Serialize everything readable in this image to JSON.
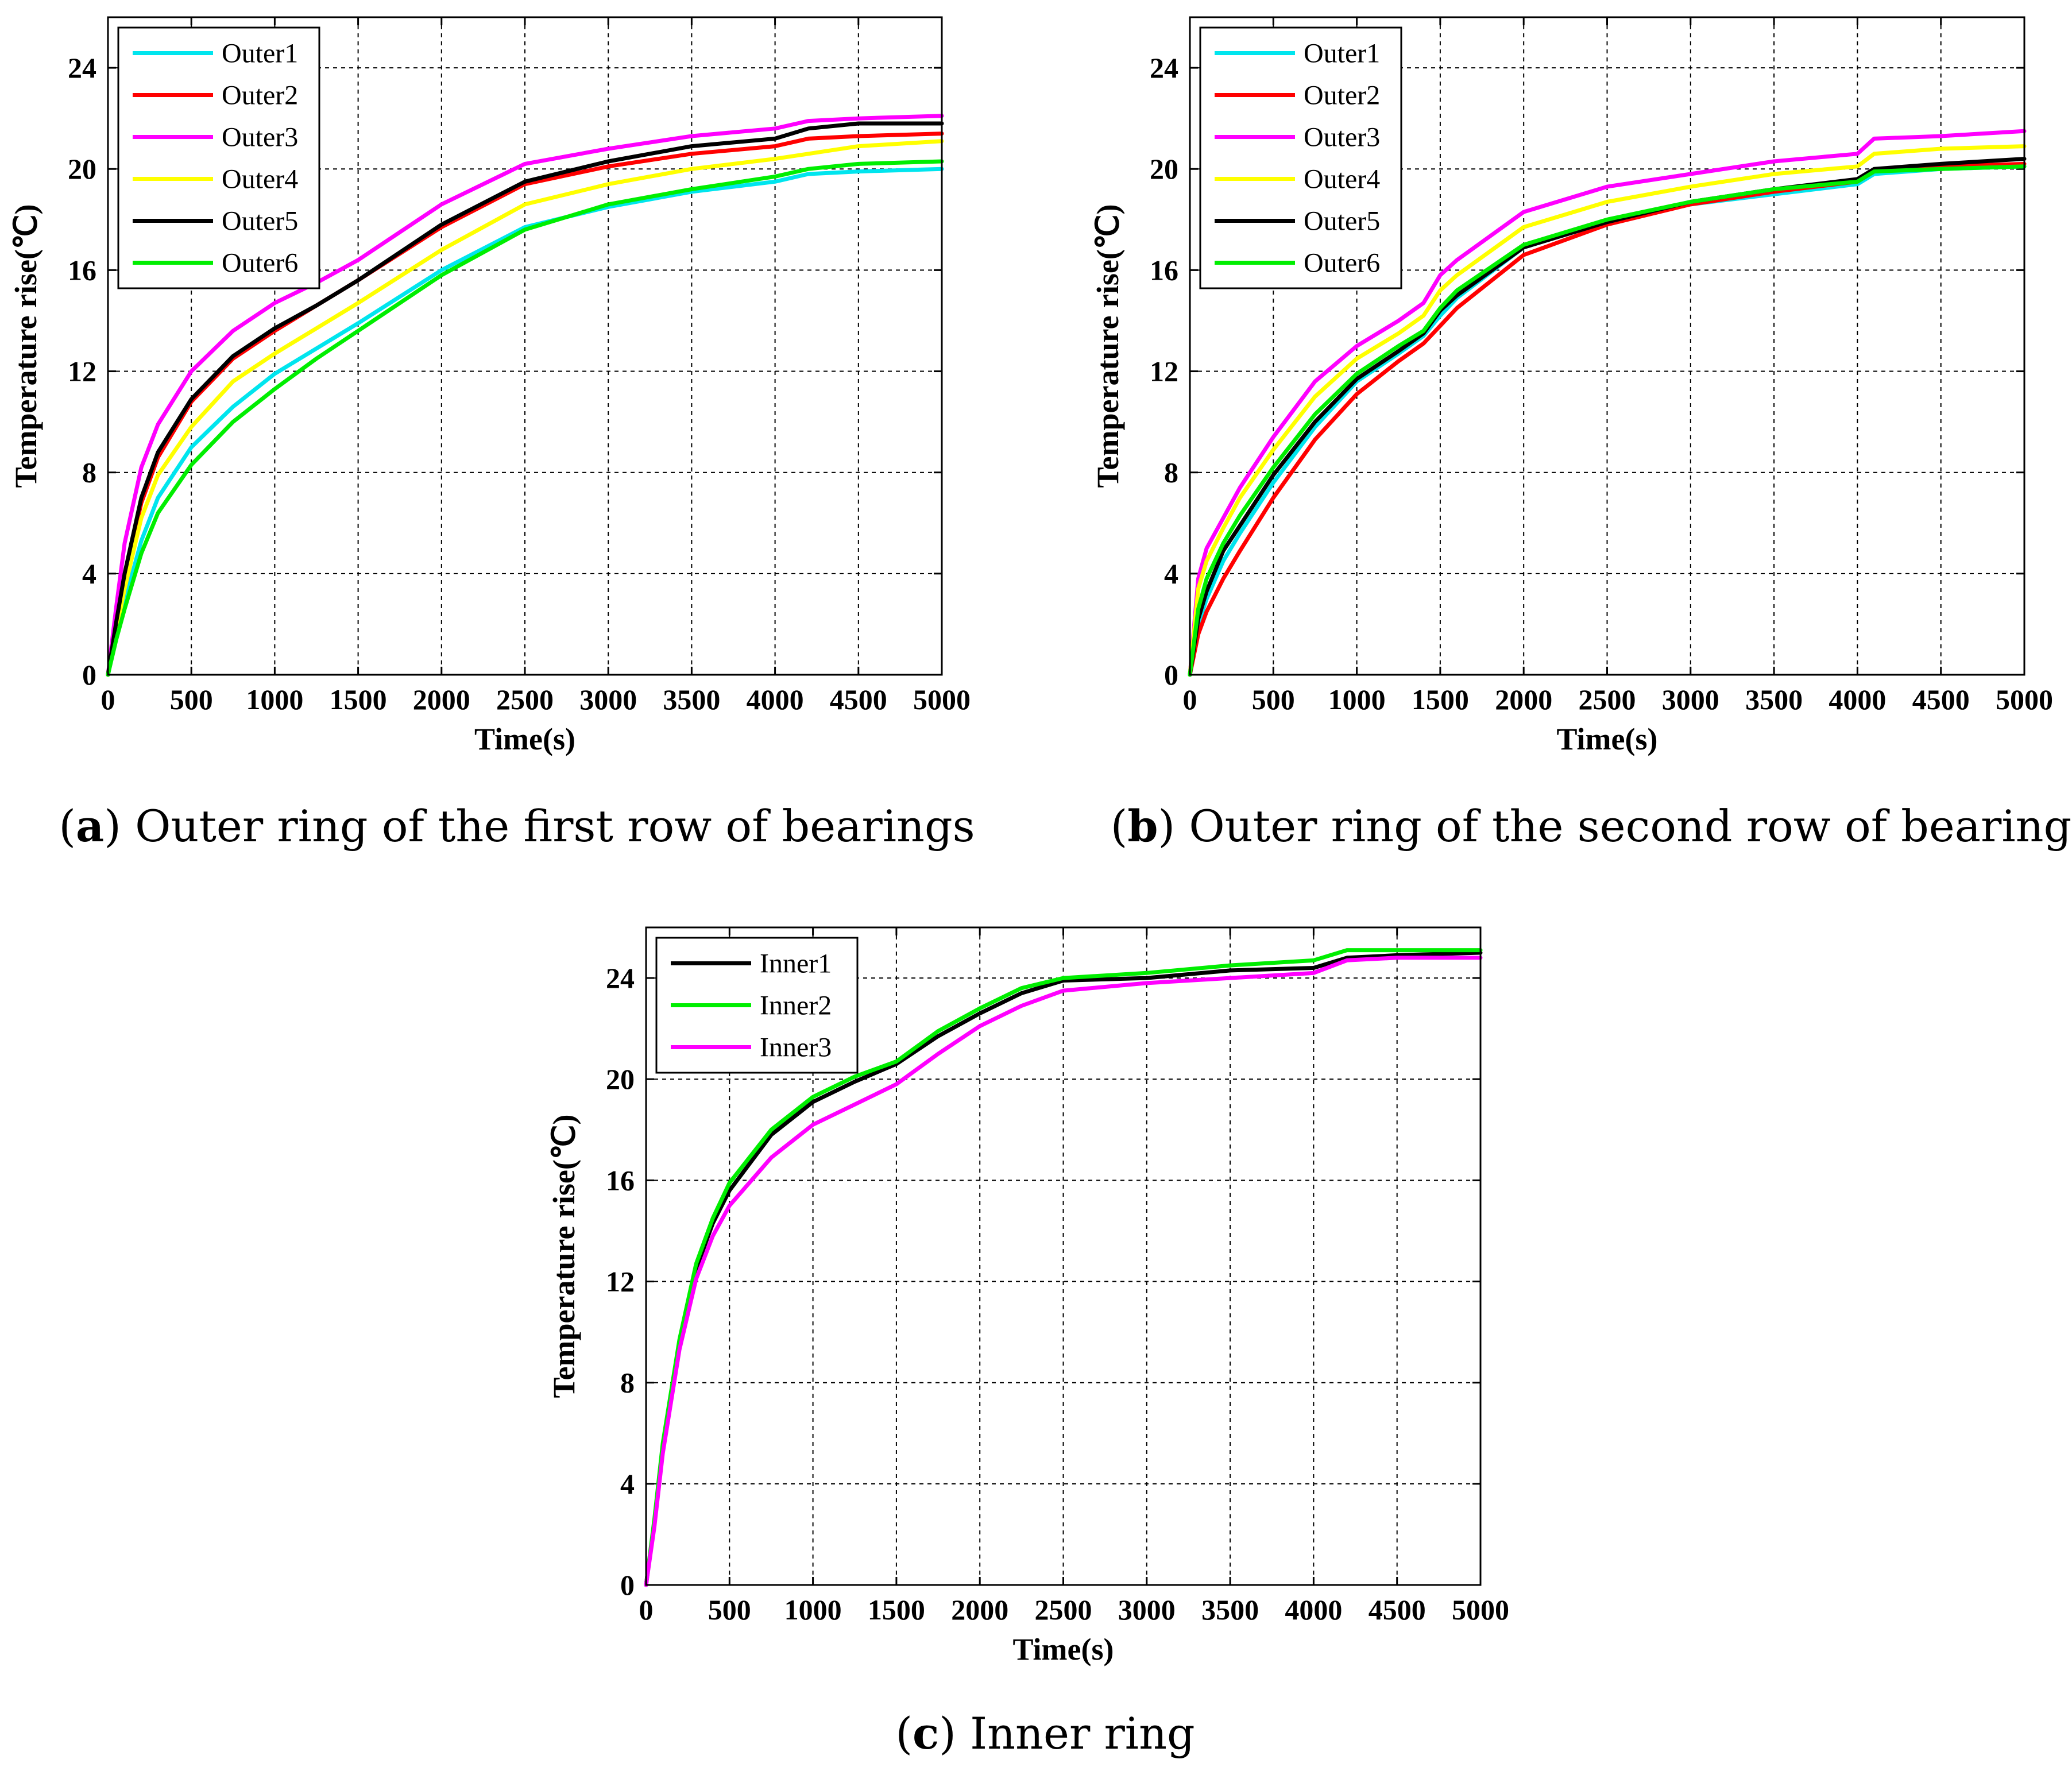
{
  "chart_data": [
    {
      "id": "a",
      "type": "line",
      "caption_letter": "a",
      "caption_text": "Outer ring of the first row of bearings",
      "xlabel": "Time(s)",
      "ylabel": "Temperature rise(℃)",
      "xlim": [
        0,
        5000
      ],
      "ylim": [
        0,
        26
      ],
      "xticks": [
        0,
        500,
        1000,
        1500,
        2000,
        2500,
        3000,
        3500,
        4000,
        4500,
        5000
      ],
      "yticks": [
        0,
        4,
        8,
        12,
        16,
        20,
        24
      ],
      "grid": true,
      "legend_position": "top-left",
      "x": [
        0,
        50,
        100,
        200,
        300,
        500,
        750,
        1000,
        1250,
        1500,
        2000,
        2500,
        3000,
        3500,
        4000,
        4200,
        4500,
        5000
      ],
      "series": [
        {
          "name": "Outer1",
          "color": "#00e5ee",
          "values": [
            0,
            1.5,
            2.9,
            5.3,
            7.0,
            9.0,
            10.6,
            11.9,
            12.9,
            13.9,
            16.0,
            17.7,
            18.5,
            19.1,
            19.5,
            19.8,
            19.9,
            20.0
          ]
        },
        {
          "name": "Outer2",
          "color": "#ff0000",
          "values": [
            0,
            2.0,
            3.9,
            6.8,
            8.6,
            10.8,
            12.5,
            13.6,
            14.6,
            15.6,
            17.7,
            19.4,
            20.1,
            20.6,
            20.9,
            21.2,
            21.3,
            21.4
          ]
        },
        {
          "name": "Outer3",
          "color": "#ff00ff",
          "values": [
            0,
            2.7,
            5.2,
            8.2,
            9.9,
            12.0,
            13.6,
            14.7,
            15.5,
            16.4,
            18.6,
            20.2,
            20.8,
            21.3,
            21.6,
            21.9,
            22.0,
            22.1
          ]
        },
        {
          "name": "Outer4",
          "color": "#ffff00",
          "values": [
            0,
            1.8,
            3.4,
            6.2,
            7.9,
            9.8,
            11.6,
            12.7,
            13.7,
            14.7,
            16.8,
            18.6,
            19.4,
            20.0,
            20.4,
            20.6,
            20.9,
            21.1
          ]
        },
        {
          "name": "Outer5",
          "color": "#000000",
          "values": [
            0,
            2.1,
            4.0,
            7.0,
            8.8,
            10.9,
            12.6,
            13.7,
            14.6,
            15.6,
            17.8,
            19.5,
            20.3,
            20.9,
            21.2,
            21.6,
            21.8,
            21.8
          ]
        },
        {
          "name": "Outer6",
          "color": "#00ee00",
          "values": [
            0,
            1.4,
            2.6,
            4.8,
            6.4,
            8.3,
            10.0,
            11.3,
            12.5,
            13.6,
            15.8,
            17.6,
            18.6,
            19.2,
            19.7,
            20.0,
            20.2,
            20.3
          ]
        }
      ]
    },
    {
      "id": "b",
      "type": "line",
      "caption_letter": "b",
      "caption_text": "Outer ring of the second row of bearings",
      "xlabel": "Time(s)",
      "ylabel": "Temperature rise(℃)",
      "xlim": [
        0,
        5000
      ],
      "ylim": [
        0,
        26
      ],
      "xticks": [
        0,
        500,
        1000,
        1500,
        2000,
        2500,
        3000,
        3500,
        4000,
        4500,
        5000
      ],
      "yticks": [
        0,
        4,
        8,
        12,
        16,
        20,
        24
      ],
      "grid": true,
      "legend_position": "top-left",
      "x": [
        0,
        50,
        100,
        200,
        300,
        500,
        750,
        1000,
        1250,
        1400,
        1500,
        1600,
        2000,
        2500,
        3000,
        3500,
        4000,
        4100,
        4500,
        5000
      ],
      "series": [
        {
          "name": "Outer1",
          "color": "#00e5ee",
          "values": [
            0,
            2.0,
            3.0,
            4.5,
            5.6,
            7.6,
            9.8,
            11.6,
            12.7,
            13.4,
            14.2,
            14.9,
            16.9,
            17.9,
            18.6,
            19.0,
            19.4,
            19.8,
            20.0,
            20.1
          ]
        },
        {
          "name": "Outer2",
          "color": "#ff0000",
          "values": [
            0,
            1.6,
            2.5,
            3.8,
            4.9,
            7.0,
            9.3,
            11.1,
            12.4,
            13.1,
            13.8,
            14.5,
            16.6,
            17.8,
            18.6,
            19.1,
            19.5,
            19.9,
            20.1,
            20.2
          ]
        },
        {
          "name": "Outer3",
          "color": "#ff00ff",
          "values": [
            0,
            3.8,
            5.0,
            6.2,
            7.4,
            9.4,
            11.6,
            13.0,
            14.0,
            14.7,
            15.8,
            16.4,
            18.3,
            19.3,
            19.8,
            20.3,
            20.6,
            21.2,
            21.3,
            21.5
          ]
        },
        {
          "name": "Outer4",
          "color": "#ffff00",
          "values": [
            0,
            3.4,
            4.5,
            5.8,
            7.0,
            8.9,
            11.0,
            12.5,
            13.5,
            14.2,
            15.2,
            15.8,
            17.7,
            18.7,
            19.3,
            19.8,
            20.1,
            20.6,
            20.8,
            20.9
          ]
        },
        {
          "name": "Outer5",
          "color": "#000000",
          "values": [
            0,
            2.2,
            3.3,
            4.9,
            5.9,
            7.9,
            10.0,
            11.7,
            12.8,
            13.5,
            14.4,
            15.0,
            16.9,
            17.9,
            18.7,
            19.2,
            19.6,
            20.0,
            20.2,
            20.4
          ]
        },
        {
          "name": "Outer6",
          "color": "#00ee00",
          "values": [
            0,
            2.6,
            3.8,
            5.2,
            6.3,
            8.2,
            10.3,
            11.9,
            13.0,
            13.6,
            14.5,
            15.2,
            17.0,
            18.0,
            18.7,
            19.2,
            19.5,
            19.9,
            20.0,
            20.1
          ]
        }
      ]
    },
    {
      "id": "c",
      "type": "line",
      "caption_letter": "c",
      "caption_text": "Inner ring",
      "xlabel": "Time(s)",
      "ylabel": "Temperature rise(℃)",
      "xlim": [
        0,
        5000
      ],
      "ylim": [
        0,
        26
      ],
      "xticks": [
        0,
        500,
        1000,
        1500,
        2000,
        2500,
        3000,
        3500,
        4000,
        4500,
        5000
      ],
      "yticks": [
        0,
        4,
        8,
        12,
        16,
        20,
        24
      ],
      "grid": true,
      "legend_position": "top-left",
      "x": [
        0,
        50,
        100,
        200,
        300,
        400,
        500,
        750,
        1000,
        1250,
        1500,
        1750,
        2000,
        2250,
        2500,
        3000,
        3500,
        4000,
        4200,
        4500,
        5000
      ],
      "series": [
        {
          "name": "Inner1",
          "color": "#000000",
          "values": [
            0,
            2.5,
            5.5,
            9.6,
            12.5,
            14.3,
            15.6,
            17.8,
            19.1,
            19.9,
            20.6,
            21.7,
            22.6,
            23.4,
            23.9,
            24.0,
            24.3,
            24.4,
            24.8,
            24.9,
            25.0
          ]
        },
        {
          "name": "Inner2",
          "color": "#00ee00",
          "values": [
            0,
            2.6,
            5.6,
            9.7,
            12.7,
            14.5,
            15.9,
            18.0,
            19.3,
            20.1,
            20.7,
            21.9,
            22.8,
            23.6,
            24.0,
            24.2,
            24.5,
            24.7,
            25.1,
            25.1,
            25.1
          ]
        },
        {
          "name": "Inner3",
          "color": "#ff00ff",
          "values": [
            0,
            2.3,
            5.2,
            9.3,
            12.1,
            13.8,
            15.0,
            16.9,
            18.2,
            19.0,
            19.8,
            21.0,
            22.1,
            22.9,
            23.5,
            23.8,
            24.0,
            24.2,
            24.7,
            24.8,
            24.8
          ]
        }
      ]
    }
  ]
}
